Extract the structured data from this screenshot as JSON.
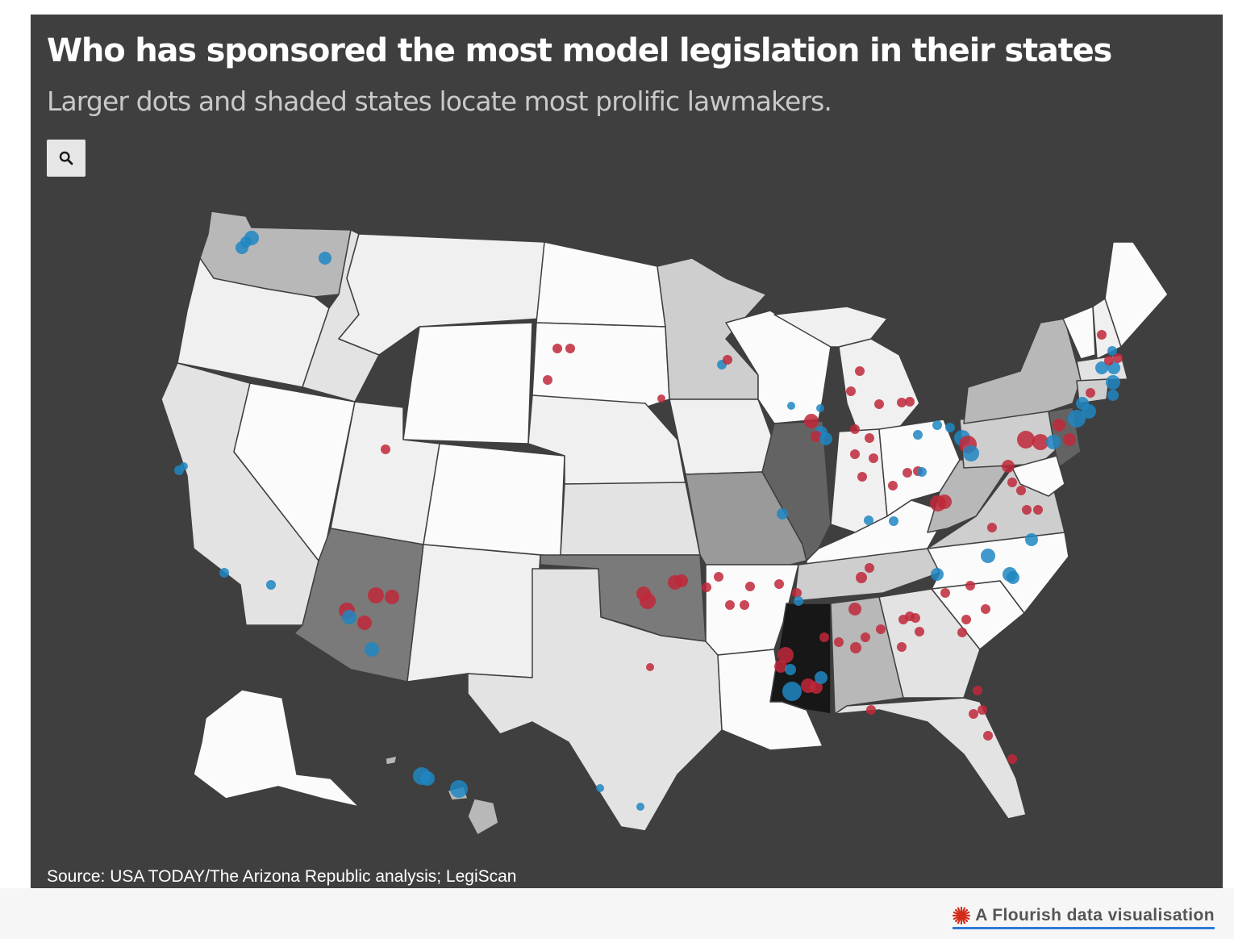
{
  "header": {
    "title": "Who has sponsored the most model legislation in their states",
    "subtitle": "Larger dots and shaded states locate most prolific lawmakers."
  },
  "controls": {
    "search_icon": "search-icon"
  },
  "map": {
    "background": "#3f3f3f",
    "state_borders": "#3f3f3f",
    "dot_colors": {
      "party_red": "#c0283a",
      "party_blue": "#1f86c2"
    },
    "state_shading": [
      "#fbfbfb",
      "#f0f0f0",
      "#e3e3e3",
      "#cecece",
      "#b8b8b8",
      "#9a9a9a",
      "#7a7a7a",
      "#636363",
      "#171717"
    ]
  },
  "footer": {
    "source": "Source: USA TODAY/The Arizona Republic analysis; LegiScan",
    "credit": "A Flourish data visualisation",
    "credit_icon": "flourish-logo-icon"
  }
}
